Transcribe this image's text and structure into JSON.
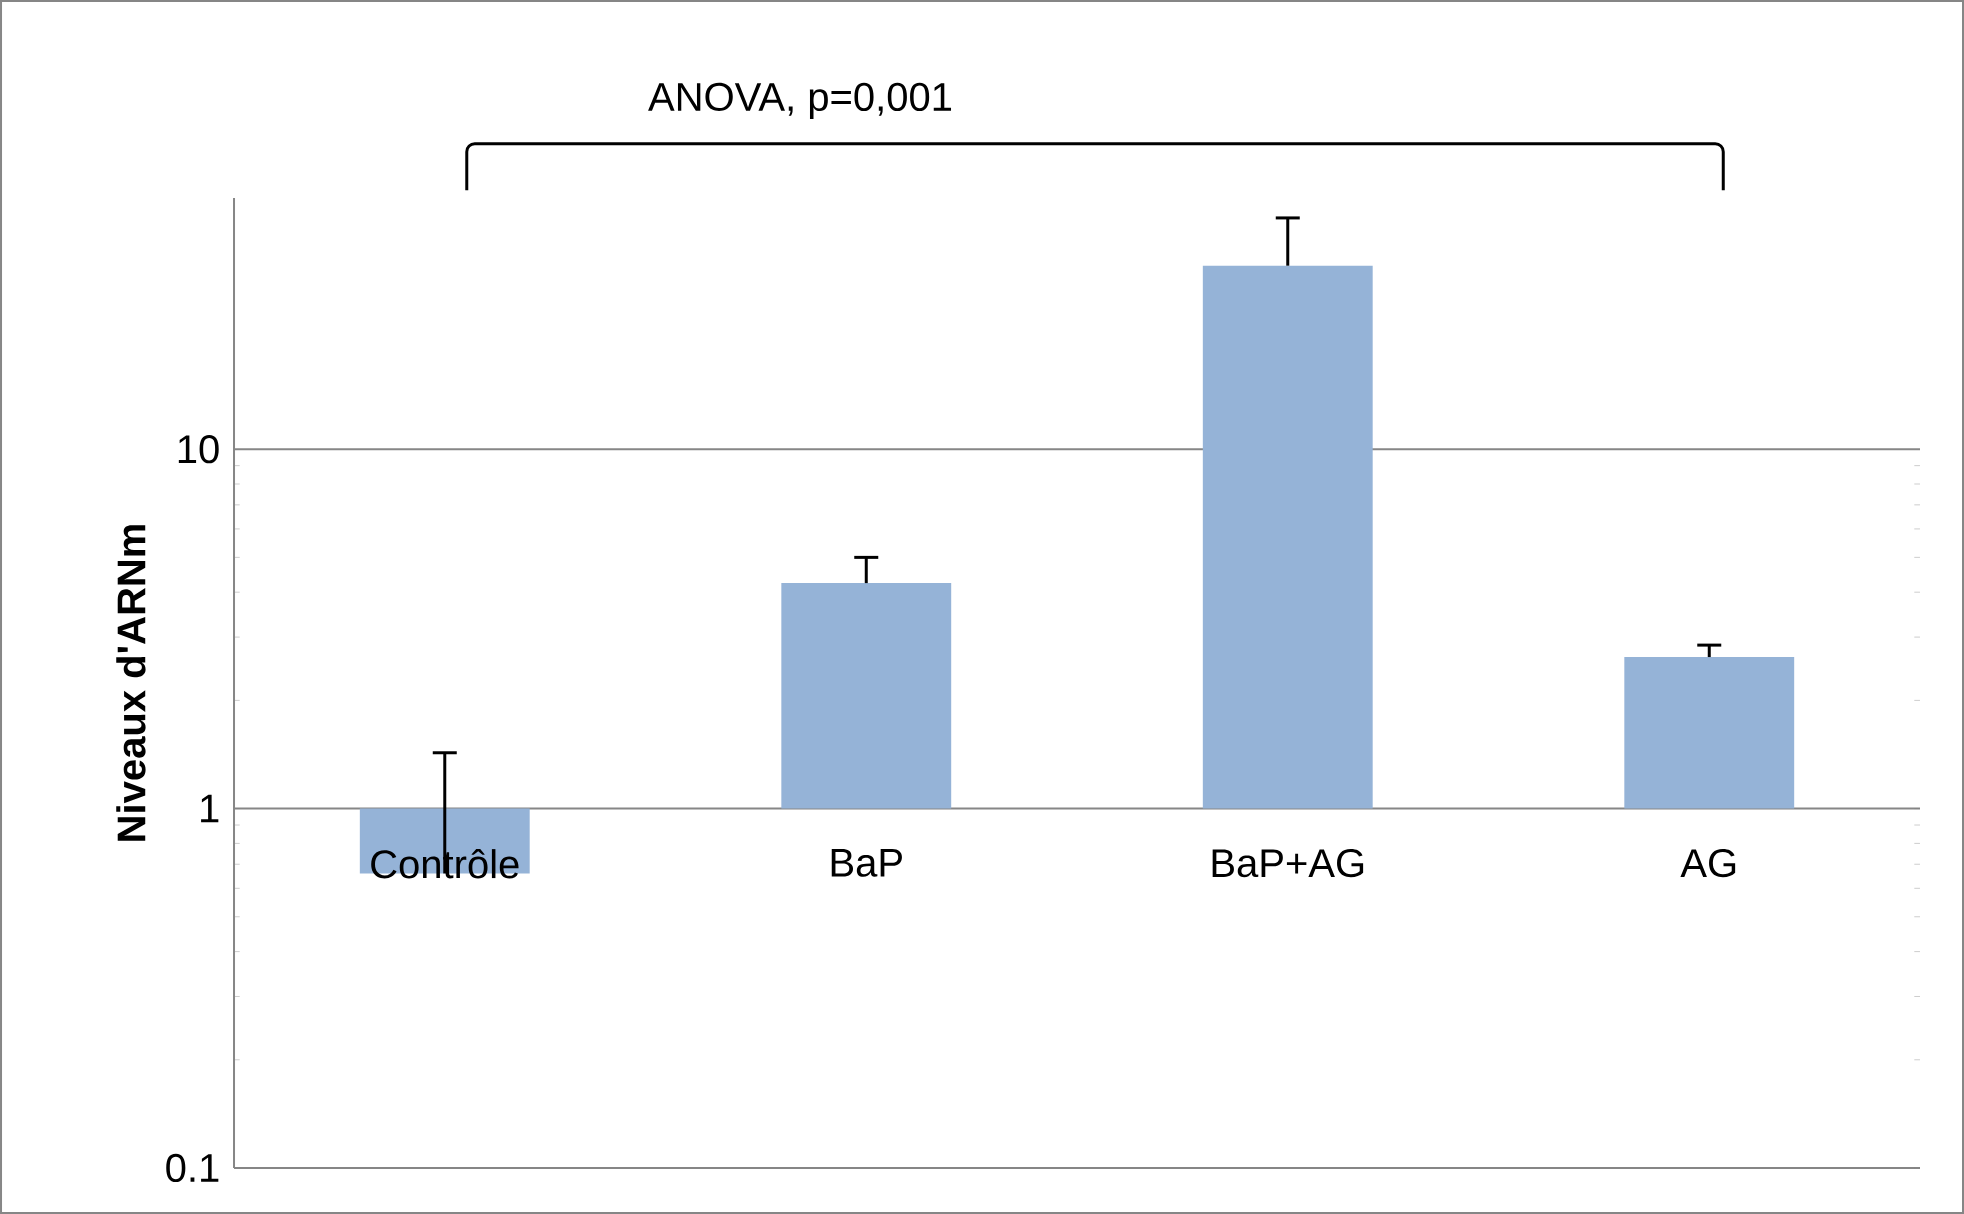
{
  "chart_data": {
    "type": "bar",
    "ylabel": "Niveaux d'ARNm",
    "categories": [
      "Contrôle",
      "BaP",
      "BaP+AG",
      "AG"
    ],
    "values": [
      -0.34,
      3.24,
      31.4,
      1.64
    ],
    "base": [
      1,
      1,
      1,
      1
    ],
    "errors": [
      [
        0.66,
        1.43
      ],
      [
        4.24,
        5.0
      ],
      [
        32.4,
        44
      ],
      [
        2.64,
        2.85
      ]
    ],
    "color": "#95b3d7",
    "log": true,
    "ylim": [
      0.1,
      50
    ],
    "yticks": [
      0.1,
      1,
      10
    ],
    "grid": "y",
    "annotations": [
      "ANOVA, p=0,001"
    ]
  }
}
